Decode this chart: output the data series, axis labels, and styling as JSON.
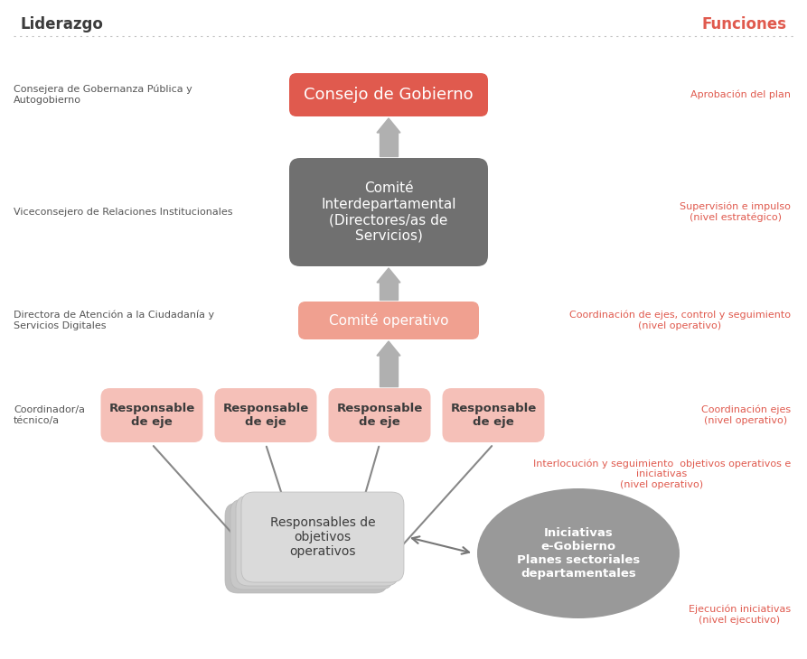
{
  "bg_color": "#ffffff",
  "title_liderazgo": "Liderazgo",
  "title_funciones": "Funciones",
  "title_color_left": "#3c3c3c",
  "title_color_right": "#e05a4e",
  "dotted_line_color": "#c0c0c0",
  "arrow_color": "#aaaaaa",
  "box_consejo_label": "Consejo de Gobierno",
  "box_consejo_color": "#e05a4e",
  "box_consejo_text_color": "#ffffff",
  "box_interdep_label": "Comité\nInterdepartamental\n(Directores/as de\nServicios)",
  "box_interdep_color": "#707070",
  "box_interdep_text_color": "#ffffff",
  "box_operativo_label": "Comité operativo",
  "box_operativo_color": "#f0a090",
  "box_operativo_text_color": "#ffffff",
  "box_resp_label": "Responsable\nde eje",
  "box_resp_color": "#f5c0b8",
  "box_resp_text_color": "#3c3c3c",
  "stack_label": "Responsables de\nobjetivos\noperativos",
  "stack_colors": [
    "#c8c8c8",
    "#cecece",
    "#d4d4d4",
    "#dadada"
  ],
  "stack_text_color": "#3c3c3c",
  "ellipse_label": "Iniciativas\ne-Gobierno\nPlanes sectoriales\ndepartamentales",
  "ellipse_color": "#999999",
  "ellipse_text_color": "#ffffff",
  "left_labels": [
    "Consejera de Gobernanza Pública y\nAutogobierno",
    "Viceconsejero de Relaciones Institucionales",
    "Directora de Atención a la Ciudadanía y\nServicios Digitales",
    "Coordinador/a\ntécnico/a"
  ],
  "right_labels": [
    "Aprobación del plan",
    "Supervisión e impulso\n(nivel estratégico)",
    "Coordinación de ejes, control y seguimiento\n(nivel operativo)",
    "Coordinación ejes\n(nivel operativo)",
    "Interlocución y seguimiento  objetivos operativos e\niniciativas\n(nivel operativo)",
    "Ejecución iniciativas\n(nivel ejecutivo)"
  ],
  "right_label_color": "#e05a4e",
  "left_label_color": "#555555",
  "diag_arrow_color": "#888888",
  "figw": 8.93,
  "figh": 7.3,
  "dpi": 100
}
